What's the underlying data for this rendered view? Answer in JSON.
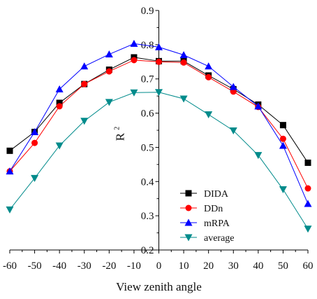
{
  "chart_data": {
    "type": "line",
    "xlabel": "View  zenith angle",
    "ylabel": "R",
    "ylabel_superscript": "2",
    "x": [
      -60,
      -50,
      -40,
      -30,
      -20,
      -10,
      0,
      10,
      20,
      30,
      40,
      50,
      60
    ],
    "xlim": [
      -60,
      60
    ],
    "ylim": [
      0.2,
      0.9
    ],
    "x_ticks": [
      "-60",
      "-50",
      "-40",
      "-30",
      "-20",
      "-10",
      "0",
      "10",
      "20",
      "30",
      "40",
      "50",
      "60"
    ],
    "y_ticks": [
      "0.2",
      "0.3",
      "0.4",
      "0.5",
      "0.6",
      "0.7",
      "0.8",
      "0.9"
    ],
    "grid": false,
    "legend_position": "bottom-right",
    "series": [
      {
        "name": "DIDA",
        "color": "#000000",
        "marker": "square",
        "values": [
          0.49,
          0.545,
          0.63,
          0.685,
          0.727,
          0.763,
          0.752,
          0.752,
          0.71,
          0.67,
          0.625,
          0.565,
          0.455
        ]
      },
      {
        "name": "DDn",
        "color": "#ff0000",
        "marker": "circle",
        "values": [
          0.43,
          0.513,
          0.62,
          0.685,
          0.722,
          0.755,
          0.75,
          0.748,
          0.705,
          0.663,
          0.618,
          0.525,
          0.38
        ]
      },
      {
        "name": "mRPA",
        "color": "#0000ff",
        "marker": "triangle",
        "values": [
          0.43,
          0.545,
          0.67,
          0.737,
          0.772,
          0.803,
          0.793,
          0.77,
          0.737,
          0.677,
          0.62,
          0.505,
          0.335
        ]
      },
      {
        "name": "average",
        "color": "#008b8b",
        "marker": "triangle-down",
        "values": [
          0.318,
          0.41,
          0.505,
          0.577,
          0.632,
          0.66,
          0.661,
          0.642,
          0.596,
          0.549,
          0.477,
          0.377,
          0.262
        ]
      }
    ]
  }
}
